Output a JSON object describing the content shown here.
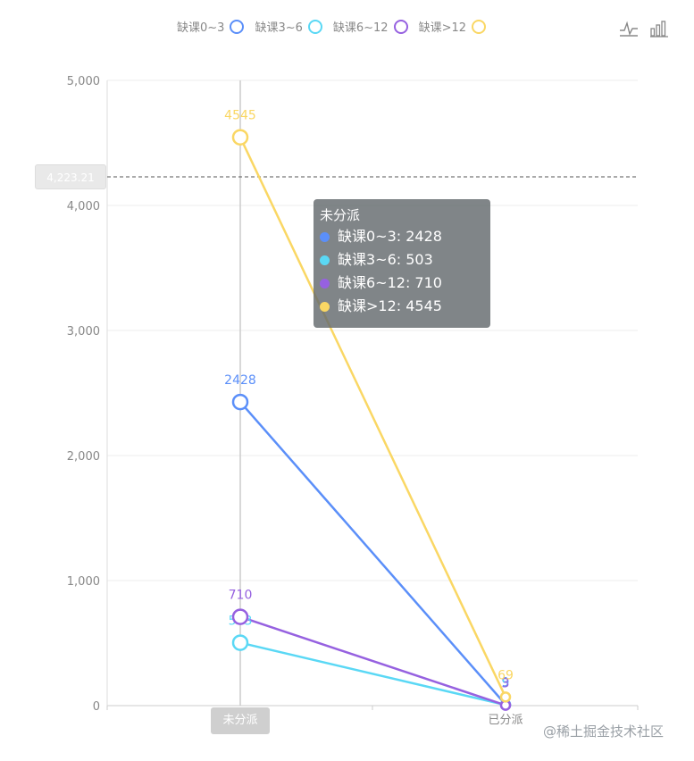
{
  "chart_data": {
    "type": "line",
    "categories": [
      "未分派",
      "已分派"
    ],
    "series": [
      {
        "name": "缺课0~3",
        "values": [
          2428,
          9
        ],
        "color": "#5b8ff9"
      },
      {
        "name": "缺课3~6",
        "values": [
          503,
          5
        ],
        "color": "#5ad8f5"
      },
      {
        "name": "缺课6~12",
        "values": [
          710,
          3
        ],
        "color": "#9661e0"
      },
      {
        "name": "缺课>12",
        "values": [
          4545,
          69
        ],
        "color": "#fad764"
      }
    ],
    "ylim": [
      0,
      5000
    ],
    "yticks": [
      "0",
      "1,000",
      "2,000",
      "3,000",
      "4,000",
      "5,000"
    ],
    "legend_position": "top-center",
    "grid": true
  },
  "axis_pointer": {
    "y_value": "4,223.21",
    "x_value": "未分派"
  },
  "tooltip": {
    "title": "未分派",
    "rows": [
      {
        "text": "缺课0~3: 2428",
        "color": "#5b8ff9"
      },
      {
        "text": "缺课3~6: 503",
        "color": "#5ad8f5"
      },
      {
        "text": "缺课6~12: 710",
        "color": "#9661e0"
      },
      {
        "text": "缺课>12: 4545",
        "color": "#fad764"
      }
    ]
  },
  "toolbox": {
    "line_icon": "line-chart-icon",
    "bar_icon": "bar-chart-icon"
  },
  "watermark": "@稀土掘金技术社区"
}
